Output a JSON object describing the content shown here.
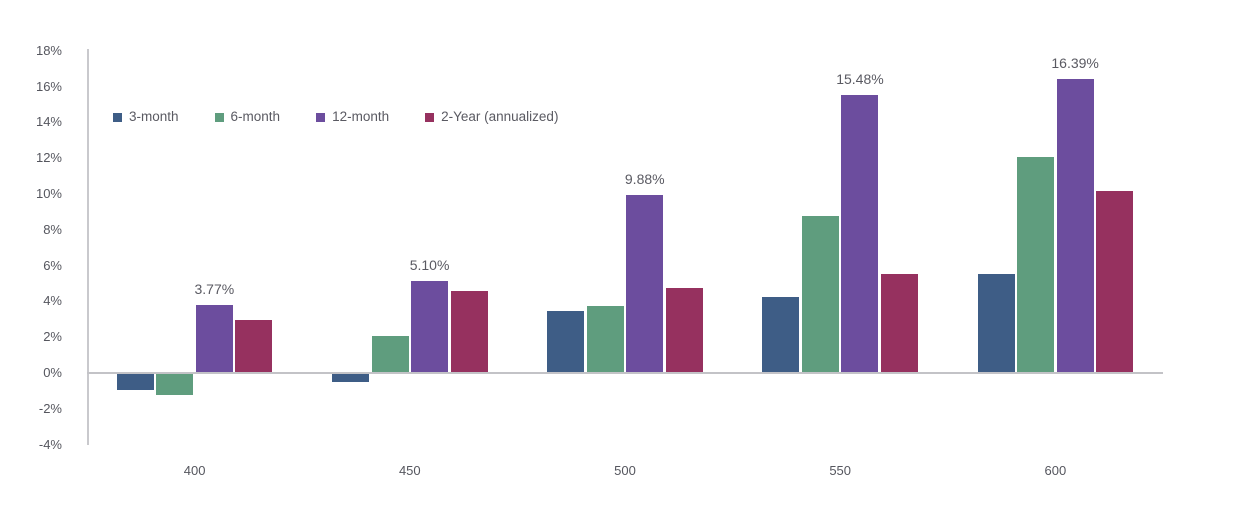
{
  "chart_data": {
    "type": "bar",
    "title": "",
    "xlabel": "",
    "ylabel": "",
    "categories": [
      "400",
      "450",
      "500",
      "550",
      "600"
    ],
    "series": [
      {
        "name": "3-month",
        "color": "#3E5D86",
        "values": [
          -0.9,
          -0.5,
          3.4,
          4.2,
          5.5
        ]
      },
      {
        "name": "6-month",
        "color": "#5F9D7E",
        "values": [
          -1.2,
          2.0,
          3.7,
          8.7,
          12.0
        ]
      },
      {
        "name": "12-month",
        "color": "#6C4D9E",
        "values": [
          3.77,
          5.1,
          9.88,
          15.48,
          16.39
        ],
        "data_labels": [
          "3.77%",
          "5.10%",
          "9.88%",
          "15.48%",
          "16.39%"
        ]
      },
      {
        "name": "2-Year (annualized)",
        "color": "#96315F",
        "values": [
          2.9,
          4.5,
          4.7,
          5.5,
          10.1
        ]
      }
    ],
    "ylim": [
      -4,
      18
    ],
    "ytick_values": [
      18,
      16,
      14,
      12,
      10,
      8,
      6,
      4,
      2,
      0,
      -2,
      -4
    ],
    "ytick_labels": [
      "18%",
      "16%",
      "14%",
      "12%",
      "10%",
      "8%",
      "6%",
      "4%",
      "2%",
      "0%",
      "-2%",
      "-4%"
    ],
    "grid": false,
    "legend_position": "top-left-inside"
  },
  "colors": {
    "background": "#FFFFFF",
    "axis_line": "#C9C9CD",
    "zero_line": "#C3C3C7",
    "tick_text": "#55565E",
    "x_label_text": "#55565E",
    "data_label_text": "#5A5A62",
    "legend_text": "#5A5A62"
  }
}
